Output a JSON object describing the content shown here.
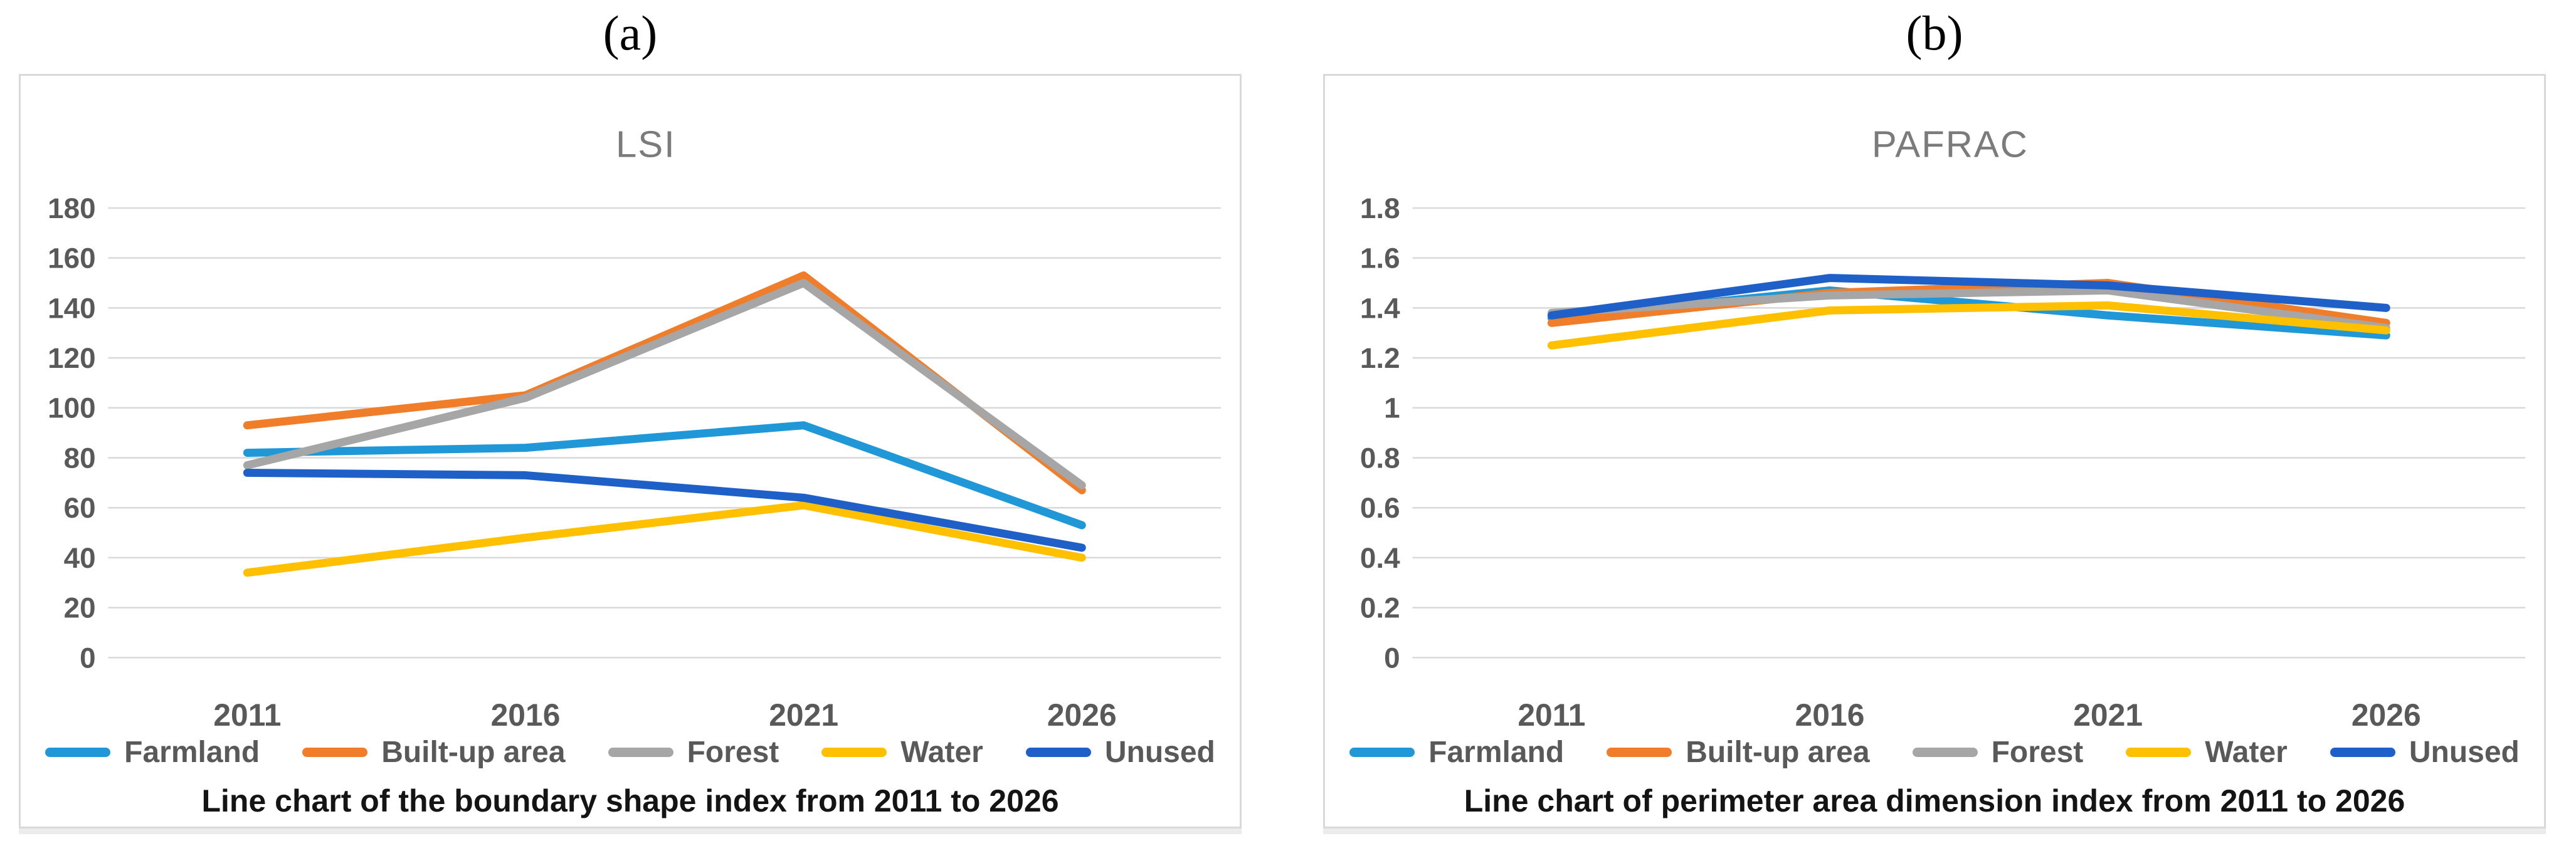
{
  "legend_labels": [
    "Farmland",
    "Built-up area",
    "Forest",
    "Water",
    "Unused"
  ],
  "series_colors": {
    "farmland": "#2098d8",
    "built_up_area": "#f07d29",
    "forest": "#a6a6a6",
    "water": "#ffc000",
    "unused": "#1f5fc8"
  },
  "chart_data": [
    {
      "type": "line",
      "panel_label": "(a)",
      "title": "LSI",
      "caption": "Line chart of the boundary shape index from 2011 to 2026",
      "categories": [
        "2011",
        "2016",
        "2021",
        "2026"
      ],
      "series": [
        {
          "name": "Farmland",
          "color": "#2098d8",
          "values": [
            82,
            84,
            93,
            53
          ]
        },
        {
          "name": "Built-up area",
          "color": "#f07d29",
          "values": [
            93,
            105,
            153,
            67
          ]
        },
        {
          "name": "Forest",
          "color": "#a6a6a6",
          "values": [
            77,
            104,
            150,
            69
          ]
        },
        {
          "name": "Water",
          "color": "#ffc000",
          "values": [
            34,
            48,
            61,
            40
          ]
        },
        {
          "name": "Unused",
          "color": "#1f5fc8",
          "values": [
            74,
            73,
            64,
            44
          ]
        }
      ],
      "xlabel": "",
      "ylabel": "",
      "ylim": [
        0,
        180
      ],
      "ytick_labels": [
        "180",
        "160",
        "140",
        "120",
        "100",
        "80",
        "60",
        "40",
        "20",
        "0"
      ],
      "grid": true,
      "legend_position": "bottom"
    },
    {
      "type": "line",
      "panel_label": "(b)",
      "title": "PAFRAC",
      "caption": "Line chart of perimeter area dimension index from 2011 to 2026",
      "categories": [
        "2011",
        "2016",
        "2021",
        "2026"
      ],
      "series": [
        {
          "name": "Farmland",
          "color": "#2098d8",
          "values": [
            1.36,
            1.47,
            1.37,
            1.29
          ]
        },
        {
          "name": "Built-up area",
          "color": "#f07d29",
          "values": [
            1.34,
            1.46,
            1.5,
            1.34
          ]
        },
        {
          "name": "Forest",
          "color": "#a6a6a6",
          "values": [
            1.38,
            1.45,
            1.47,
            1.32
          ]
        },
        {
          "name": "Water",
          "color": "#ffc000",
          "values": [
            1.25,
            1.39,
            1.41,
            1.31
          ]
        },
        {
          "name": "Unused",
          "color": "#1f5fc8",
          "values": [
            1.37,
            1.52,
            1.49,
            1.4
          ]
        }
      ],
      "xlabel": "",
      "ylabel": "",
      "ylim": [
        0,
        1.8
      ],
      "ytick_labels": [
        "1.8",
        "1.6",
        "1.4",
        "1.2",
        "1",
        "0.8",
        "0.6",
        "0.4",
        "0.2",
        "0"
      ],
      "grid": true,
      "legend_position": "bottom"
    }
  ]
}
